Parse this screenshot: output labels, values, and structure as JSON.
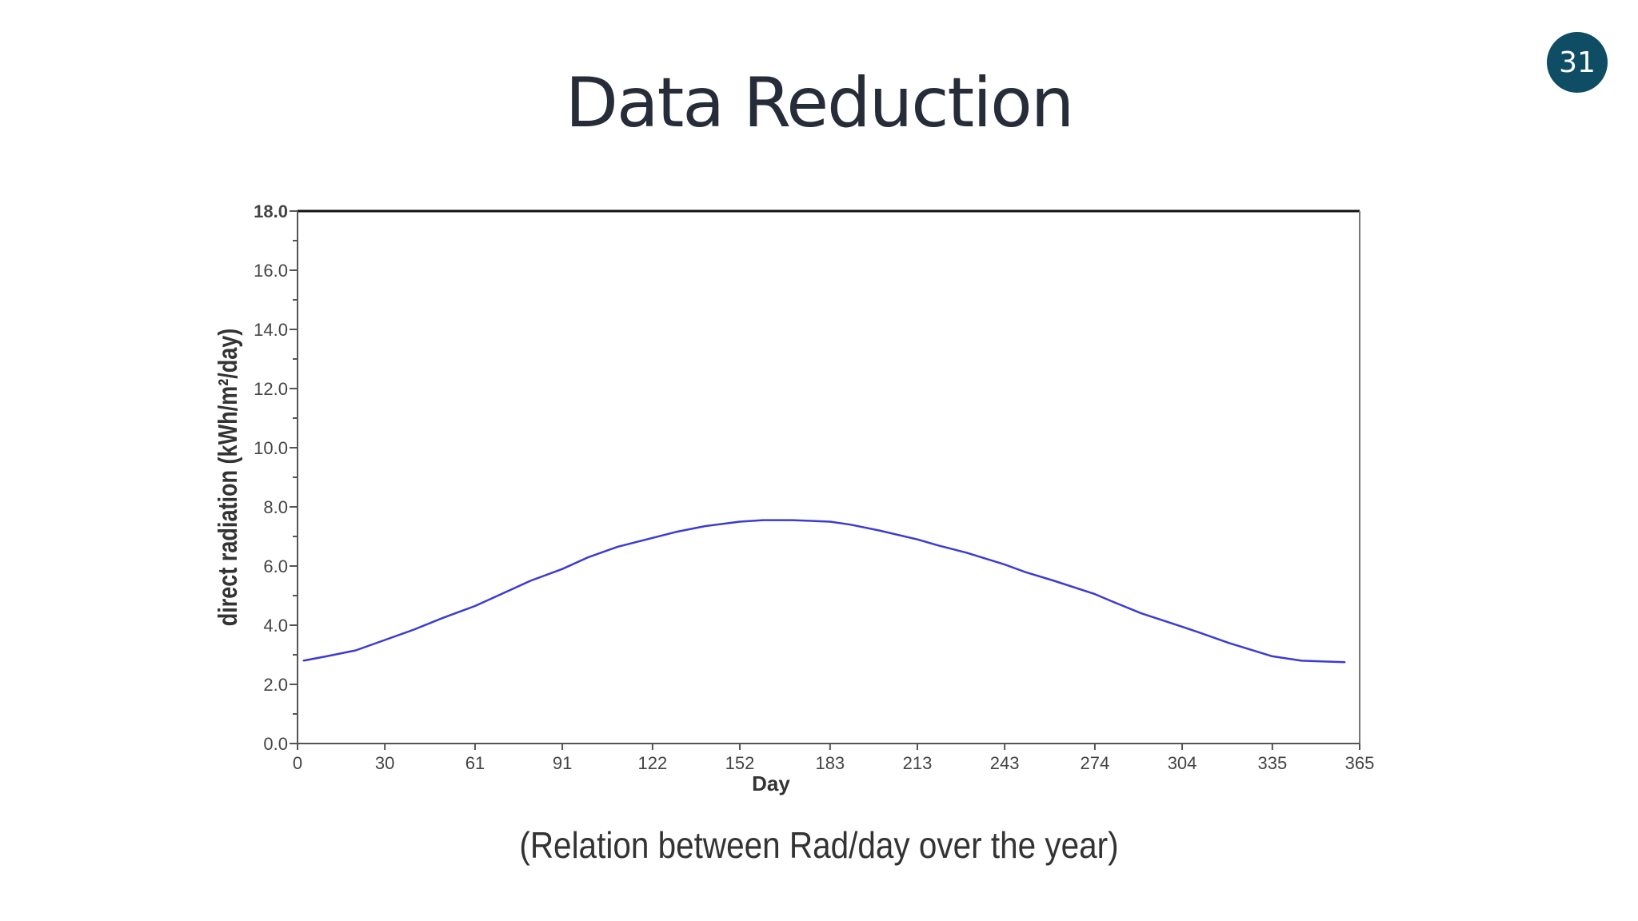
{
  "slide": {
    "number": "31",
    "title": "Data Reduction",
    "caption": "(Relation between Rad/day over the year)"
  },
  "colors": {
    "line": "#3b3bd4",
    "axis": "#555555",
    "title": "#262d38",
    "badge": "#0e4d64"
  },
  "chart_data": {
    "type": "line",
    "title": "",
    "xlabel": "Day",
    "ylabel": "direct radiation (kWh/m²/day)",
    "xlim": [
      0,
      365
    ],
    "ylim": [
      0,
      18
    ],
    "x_ticks": [
      "0",
      "30",
      "61",
      "91",
      "122",
      "152",
      "183",
      "213",
      "243",
      "274",
      "304",
      "335",
      "365"
    ],
    "y_ticks": [
      "0.0",
      "2.0",
      "4.0",
      "6.0",
      "8.0",
      "10.0",
      "12.0",
      "14.0",
      "16.0",
      "18.0"
    ],
    "grid": false,
    "legend": "none",
    "series": [
      {
        "x": [
          2,
          10,
          20,
          30,
          40,
          50,
          61,
          70,
          80,
          91,
          100,
          110,
          122,
          130,
          140,
          152,
          160,
          170,
          183,
          190,
          200,
          213,
          220,
          230,
          243,
          250,
          260,
          274,
          280,
          290,
          304,
          310,
          320,
          335,
          345,
          360
        ],
        "values": [
          2.8,
          2.95,
          3.15,
          3.5,
          3.85,
          4.25,
          4.65,
          5.05,
          5.5,
          5.9,
          6.3,
          6.65,
          6.95,
          7.15,
          7.35,
          7.5,
          7.55,
          7.55,
          7.5,
          7.4,
          7.2,
          6.9,
          6.7,
          6.45,
          6.05,
          5.8,
          5.5,
          5.05,
          4.8,
          4.4,
          3.95,
          3.75,
          3.4,
          2.95,
          2.8,
          2.75
        ]
      }
    ]
  }
}
